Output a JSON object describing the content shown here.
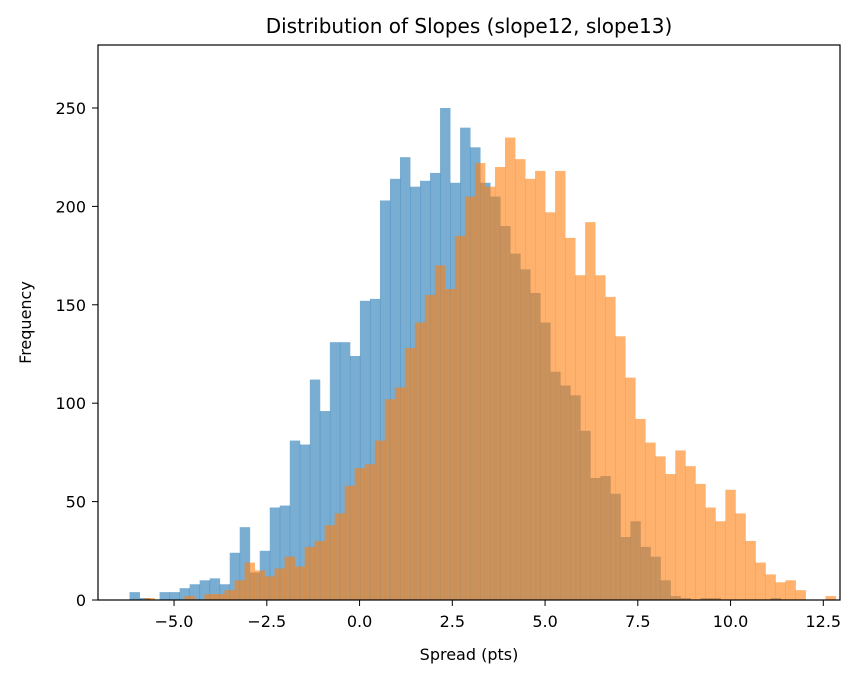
{
  "chart_data": {
    "type": "histogram",
    "title": "Distribution of Slopes (slope12, slope13)",
    "xlabel": "Spread (pts)",
    "ylabel": "Frequency",
    "xlim": [
      -7.05,
      12.95
    ],
    "ylim": [
      0,
      282
    ],
    "grid": false,
    "legend": "none",
    "x_ticks": [
      -5.0,
      -2.5,
      0.0,
      2.5,
      5.0,
      7.5,
      10.0,
      12.5
    ],
    "x_tick_labels": [
      "−5.0",
      "−2.5",
      "0.0",
      "2.5",
      "5.0",
      "7.5",
      "10.0",
      "12.5"
    ],
    "y_ticks": [
      0,
      50,
      100,
      150,
      200,
      250
    ],
    "y_tick_labels": [
      "0",
      "50",
      "100",
      "150",
      "200",
      "250"
    ],
    "series": [
      {
        "color": "#1f77b4",
        "opacity": 0.6,
        "bin_start": -6.2,
        "bin_width": 0.27,
        "counts": [
          4,
          1,
          0,
          4,
          4,
          6,
          8,
          10,
          11,
          8,
          24,
          37,
          14,
          25,
          47,
          48,
          81,
          79,
          112,
          96,
          131,
          131,
          124,
          152,
          153,
          203,
          214,
          225,
          210,
          213,
          217,
          250,
          212,
          240,
          230,
          212,
          205,
          190,
          176,
          168,
          156,
          141,
          116,
          109,
          104,
          86,
          62,
          63,
          54,
          32,
          40,
          27,
          22,
          10,
          2,
          1,
          0,
          1,
          1,
          0,
          0,
          0,
          0,
          0,
          1
        ]
      },
      {
        "color": "#ff7f0e",
        "opacity": 0.6,
        "bin_start": -5.8,
        "bin_width": 0.27,
        "counts": [
          1,
          0,
          0,
          0,
          2,
          0,
          3,
          3,
          5,
          10,
          19,
          15,
          12,
          16,
          22,
          17,
          27,
          30,
          38,
          44,
          58,
          67,
          69,
          81,
          102,
          108,
          128,
          141,
          155,
          170,
          158,
          185,
          205,
          222,
          210,
          220,
          235,
          224,
          214,
          218,
          197,
          218,
          184,
          165,
          192,
          165,
          154,
          134,
          113,
          92,
          80,
          73,
          64,
          76,
          68,
          59,
          47,
          40,
          56,
          44,
          30,
          19,
          13,
          9,
          10,
          5,
          0,
          0,
          2,
          0,
          0,
          0,
          0,
          0,
          0,
          0,
          1,
          0,
          0,
          0,
          1,
          1
        ]
      }
    ]
  }
}
